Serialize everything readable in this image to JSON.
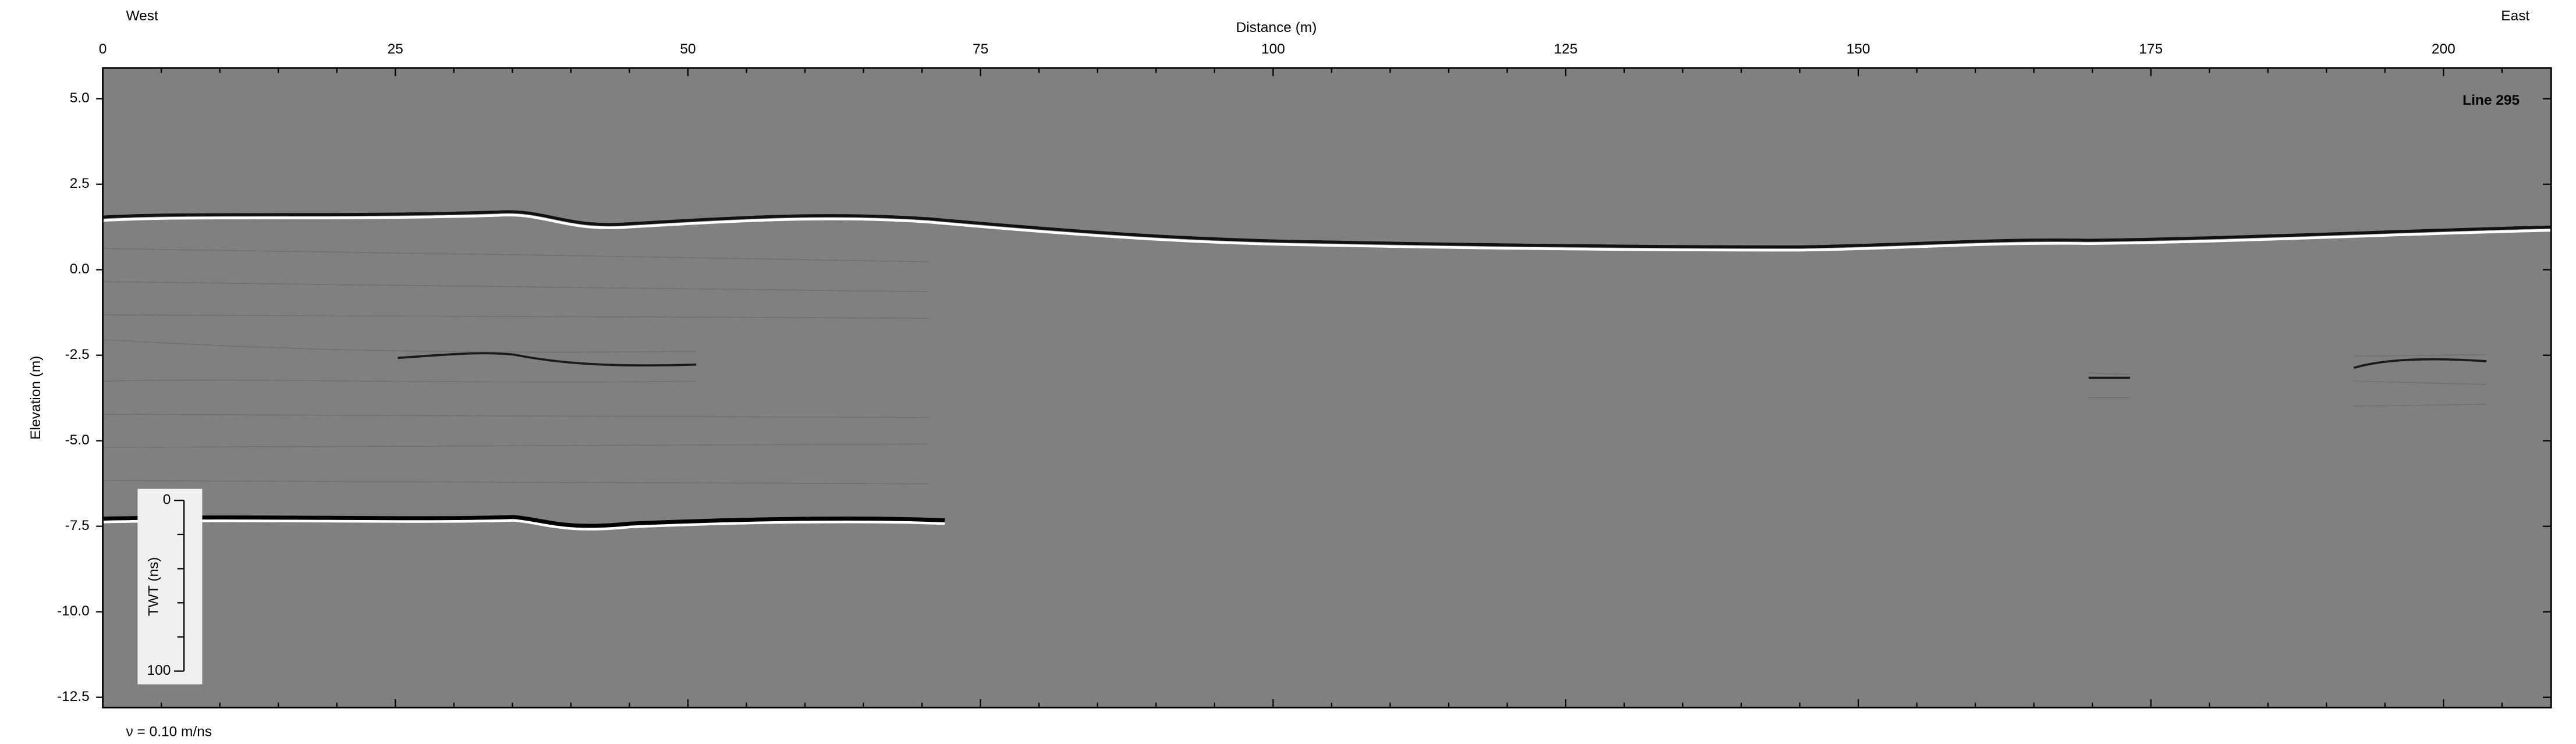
{
  "chart_data": {
    "type": "radargram",
    "line_label": "Line 295",
    "x_label": "Distance (m)",
    "y_label": "Elevation (m)",
    "x_left_label": "West",
    "x_right_label": "East",
    "annotation": "ν = 0.10 m/ns",
    "background": "#808080",
    "xlim": [
      0,
      209.2
    ],
    "ylim": [
      -12.8,
      5.9
    ],
    "xticks": [
      0,
      25,
      50,
      75,
      100,
      125,
      150,
      175,
      200
    ],
    "xminor": [
      5,
      10,
      15,
      20,
      30,
      35,
      40,
      45,
      55,
      60,
      65,
      70,
      80,
      85,
      90,
      95,
      105,
      110,
      115,
      120,
      130,
      135,
      140,
      145,
      155,
      160,
      165,
      170,
      180,
      185,
      190,
      195,
      205
    ],
    "yticks": [
      {
        "value": 5,
        "label": "5.0"
      },
      {
        "value": 2.5,
        "label": "2.5"
      },
      {
        "value": 0,
        "label": "0.0"
      },
      {
        "value": -2.5,
        "label": "-2.5"
      },
      {
        "value": -5,
        "label": "-5.0"
      },
      {
        "value": -7.5,
        "label": "-7.5"
      },
      {
        "value": -10,
        "label": "-10.0"
      },
      {
        "value": -12.5,
        "label": "-12.5"
      }
    ],
    "twt_scale": {
      "label": "TWT (ns)",
      "lim": [
        0,
        100
      ],
      "ticks": [
        0,
        100
      ],
      "minor_ticks": [
        20,
        40,
        60,
        80
      ]
    }
  }
}
